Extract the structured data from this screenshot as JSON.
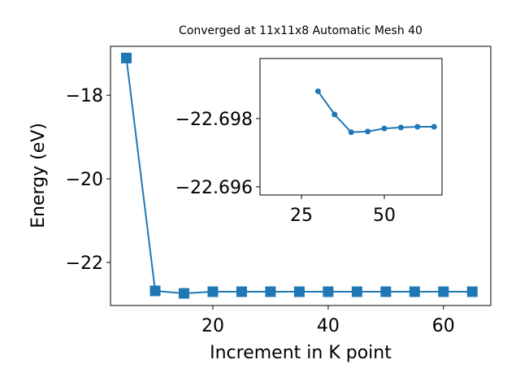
{
  "chart_data": [
    {
      "type": "line",
      "title": "Converged at 11x11x8 Automatic Mesh 40",
      "xlabel": "Increment in K point",
      "ylabel": "Energy (eV)",
      "marker": "square",
      "color": "#1f77b4",
      "x": [
        5,
        10,
        15,
        20,
        25,
        30,
        35,
        40,
        45,
        50,
        55,
        60,
        65
      ],
      "series": [
        {
          "color": "#1f77b4",
          "values": [
            -17.11,
            -22.68,
            -22.74,
            -22.7,
            -22.7,
            -22.7,
            -22.7,
            -22.7,
            -22.7,
            -22.7,
            -22.7,
            -22.7,
            -22.7
          ]
        }
      ],
      "xlim": [
        2.25,
        68.2
      ],
      "ylim": [
        -23.03,
        -16.83
      ],
      "xticks": [
        20,
        40,
        60
      ],
      "yticks": [
        {
          "value": -18,
          "label": "−18"
        },
        {
          "value": -20,
          "label": "−20"
        },
        {
          "value": -22,
          "label": "−22"
        }
      ]
    },
    {
      "type": "line",
      "marker": "circle",
      "color": "#1f77b4",
      "x": [
        30,
        35,
        40,
        45,
        50,
        55,
        60,
        65
      ],
      "series": [
        {
          "color": "#1f77b4",
          "values": [
            -22.6988,
            -22.69812,
            -22.6976,
            -22.69762,
            -22.69771,
            -22.69774,
            -22.69776,
            -22.69776
          ]
        }
      ],
      "xlim": [
        12.5,
        67.4
      ],
      "ylim": [
        -22.69576,
        -22.69976
      ],
      "xticks": [
        25,
        50
      ],
      "yticks": [
        {
          "value": -22.698,
          "label": "−22.698"
        },
        {
          "value": -22.696,
          "label": "−22.696"
        }
      ]
    }
  ]
}
